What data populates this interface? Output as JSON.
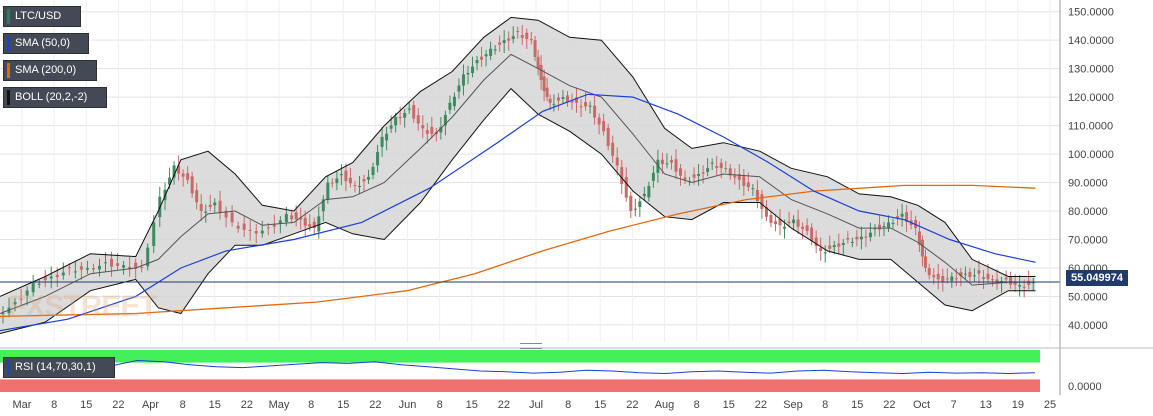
{
  "chart_data": {
    "type": "line",
    "symbol": "LTC/USD",
    "legend": [
      {
        "label": "LTC/USD",
        "color": "#2e7d5a"
      },
      {
        "label": "SMA (50,0)",
        "color": "#1c3fd6"
      },
      {
        "label": "SMA (200,0)",
        "color": "#e06a10"
      },
      {
        "label": "BOLL (20,2,-2)",
        "color": "#111111"
      }
    ],
    "y_ticks": [
      "150.0000",
      "140.0000",
      "130.0000",
      "120.0000",
      "110.0000",
      "100.0000",
      "90.0000",
      "80.0000",
      "70.0000",
      "60.0000",
      "50.0000",
      "40.0000"
    ],
    "ylim": [
      34,
      152
    ],
    "x_ticks": [
      "Mar",
      "8",
      "15",
      "22",
      "Apr",
      "8",
      "15",
      "22",
      "May",
      "8",
      "15",
      "22",
      "Jun",
      "8",
      "15",
      "22",
      "Jul",
      "8",
      "15",
      "22",
      "Aug",
      "8",
      "15",
      "22",
      "Sep",
      "8",
      "15",
      "22",
      "Oct",
      "7",
      "13",
      "19",
      "25"
    ],
    "last_price_label": "55.049974",
    "last_price": 55.05,
    "price_series": [
      {
        "x": 0,
        "y": 44
      },
      {
        "x": 8,
        "y": 48
      },
      {
        "x": 16,
        "y": 55
      },
      {
        "x": 24,
        "y": 57
      },
      {
        "x": 32,
        "y": 60
      },
      {
        "x": 40,
        "y": 60
      },
      {
        "x": 48,
        "y": 62
      },
      {
        "x": 56,
        "y": 61
      },
      {
        "x": 64,
        "y": 60
      },
      {
        "x": 72,
        "y": 85
      },
      {
        "x": 78,
        "y": 96
      },
      {
        "x": 84,
        "y": 91
      },
      {
        "x": 90,
        "y": 80
      },
      {
        "x": 96,
        "y": 83
      },
      {
        "x": 104,
        "y": 76
      },
      {
        "x": 112,
        "y": 73
      },
      {
        "x": 120,
        "y": 74
      },
      {
        "x": 128,
        "y": 79
      },
      {
        "x": 134,
        "y": 77
      },
      {
        "x": 140,
        "y": 74
      },
      {
        "x": 146,
        "y": 90
      },
      {
        "x": 152,
        "y": 93
      },
      {
        "x": 158,
        "y": 89
      },
      {
        "x": 164,
        "y": 92
      },
      {
        "x": 170,
        "y": 106
      },
      {
        "x": 176,
        "y": 113
      },
      {
        "x": 182,
        "y": 116
      },
      {
        "x": 188,
        "y": 109
      },
      {
        "x": 194,
        "y": 107
      },
      {
        "x": 200,
        "y": 118
      },
      {
        "x": 206,
        "y": 128
      },
      {
        "x": 212,
        "y": 133
      },
      {
        "x": 218,
        "y": 137
      },
      {
        "x": 224,
        "y": 140
      },
      {
        "x": 230,
        "y": 143
      },
      {
        "x": 236,
        "y": 140
      },
      {
        "x": 240,
        "y": 126
      },
      {
        "x": 244,
        "y": 118
      },
      {
        "x": 250,
        "y": 120
      },
      {
        "x": 256,
        "y": 118
      },
      {
        "x": 262,
        "y": 117
      },
      {
        "x": 268,
        "y": 108
      },
      {
        "x": 274,
        "y": 96
      },
      {
        "x": 280,
        "y": 80
      },
      {
        "x": 286,
        "y": 86
      },
      {
        "x": 292,
        "y": 98
      },
      {
        "x": 298,
        "y": 97
      },
      {
        "x": 304,
        "y": 91
      },
      {
        "x": 310,
        "y": 93
      },
      {
        "x": 316,
        "y": 97
      },
      {
        "x": 322,
        "y": 95
      },
      {
        "x": 328,
        "y": 91
      },
      {
        "x": 334,
        "y": 88
      },
      {
        "x": 340,
        "y": 78
      },
      {
        "x": 346,
        "y": 75
      },
      {
        "x": 352,
        "y": 77
      },
      {
        "x": 358,
        "y": 73
      },
      {
        "x": 364,
        "y": 66
      },
      {
        "x": 370,
        "y": 68
      },
      {
        "x": 376,
        "y": 70
      },
      {
        "x": 382,
        "y": 71
      },
      {
        "x": 388,
        "y": 74
      },
      {
        "x": 394,
        "y": 76
      },
      {
        "x": 400,
        "y": 79
      },
      {
        "x": 406,
        "y": 74
      },
      {
        "x": 410,
        "y": 60
      },
      {
        "x": 416,
        "y": 56
      },
      {
        "x": 422,
        "y": 57
      },
      {
        "x": 428,
        "y": 58
      },
      {
        "x": 434,
        "y": 58
      },
      {
        "x": 440,
        "y": 56
      },
      {
        "x": 446,
        "y": 56
      },
      {
        "x": 452,
        "y": 54
      },
      {
        "x": 458,
        "y": 55
      }
    ],
    "sma50": [
      {
        "x": 0,
        "y": 38
      },
      {
        "x": 30,
        "y": 42
      },
      {
        "x": 60,
        "y": 50
      },
      {
        "x": 80,
        "y": 60
      },
      {
        "x": 100,
        "y": 66
      },
      {
        "x": 130,
        "y": 70
      },
      {
        "x": 160,
        "y": 76
      },
      {
        "x": 190,
        "y": 88
      },
      {
        "x": 220,
        "y": 104
      },
      {
        "x": 240,
        "y": 115
      },
      {
        "x": 260,
        "y": 121
      },
      {
        "x": 280,
        "y": 120
      },
      {
        "x": 300,
        "y": 114
      },
      {
        "x": 320,
        "y": 106
      },
      {
        "x": 340,
        "y": 97
      },
      {
        "x": 360,
        "y": 87
      },
      {
        "x": 380,
        "y": 80
      },
      {
        "x": 400,
        "y": 77
      },
      {
        "x": 420,
        "y": 70
      },
      {
        "x": 440,
        "y": 65
      },
      {
        "x": 458,
        "y": 62
      }
    ],
    "sma200": [
      {
        "x": 0,
        "y": 43
      },
      {
        "x": 60,
        "y": 44
      },
      {
        "x": 100,
        "y": 46
      },
      {
        "x": 140,
        "y": 48
      },
      {
        "x": 180,
        "y": 52
      },
      {
        "x": 210,
        "y": 58
      },
      {
        "x": 240,
        "y": 66
      },
      {
        "x": 270,
        "y": 73
      },
      {
        "x": 300,
        "y": 79
      },
      {
        "x": 330,
        "y": 84
      },
      {
        "x": 360,
        "y": 87
      },
      {
        "x": 400,
        "y": 89
      },
      {
        "x": 430,
        "y": 89
      },
      {
        "x": 458,
        "y": 88
      }
    ],
    "boll_upper": [
      {
        "x": 0,
        "y": 50
      },
      {
        "x": 20,
        "y": 57
      },
      {
        "x": 40,
        "y": 65
      },
      {
        "x": 60,
        "y": 64
      },
      {
        "x": 70,
        "y": 80
      },
      {
        "x": 80,
        "y": 98
      },
      {
        "x": 92,
        "y": 101
      },
      {
        "x": 104,
        "y": 93
      },
      {
        "x": 116,
        "y": 82
      },
      {
        "x": 130,
        "y": 80
      },
      {
        "x": 144,
        "y": 92
      },
      {
        "x": 156,
        "y": 97
      },
      {
        "x": 170,
        "y": 110
      },
      {
        "x": 186,
        "y": 122
      },
      {
        "x": 200,
        "y": 129
      },
      {
        "x": 214,
        "y": 141
      },
      {
        "x": 226,
        "y": 148
      },
      {
        "x": 238,
        "y": 147
      },
      {
        "x": 252,
        "y": 141
      },
      {
        "x": 266,
        "y": 140
      },
      {
        "x": 280,
        "y": 127
      },
      {
        "x": 294,
        "y": 109
      },
      {
        "x": 306,
        "y": 102
      },
      {
        "x": 320,
        "y": 104
      },
      {
        "x": 336,
        "y": 101
      },
      {
        "x": 350,
        "y": 95
      },
      {
        "x": 366,
        "y": 92
      },
      {
        "x": 380,
        "y": 86
      },
      {
        "x": 394,
        "y": 85
      },
      {
        "x": 406,
        "y": 82
      },
      {
        "x": 418,
        "y": 76
      },
      {
        "x": 430,
        "y": 63
      },
      {
        "x": 446,
        "y": 57
      },
      {
        "x": 458,
        "y": 57
      }
    ],
    "boll_lower": [
      {
        "x": 0,
        "y": 37
      },
      {
        "x": 20,
        "y": 41
      },
      {
        "x": 40,
        "y": 52
      },
      {
        "x": 60,
        "y": 56
      },
      {
        "x": 70,
        "y": 46
      },
      {
        "x": 80,
        "y": 44
      },
      {
        "x": 92,
        "y": 58
      },
      {
        "x": 104,
        "y": 68
      },
      {
        "x": 116,
        "y": 68
      },
      {
        "x": 130,
        "y": 72
      },
      {
        "x": 144,
        "y": 76
      },
      {
        "x": 156,
        "y": 72
      },
      {
        "x": 170,
        "y": 70
      },
      {
        "x": 186,
        "y": 83
      },
      {
        "x": 200,
        "y": 98
      },
      {
        "x": 214,
        "y": 112
      },
      {
        "x": 226,
        "y": 123
      },
      {
        "x": 238,
        "y": 114
      },
      {
        "x": 252,
        "y": 108
      },
      {
        "x": 266,
        "y": 100
      },
      {
        "x": 280,
        "y": 87
      },
      {
        "x": 294,
        "y": 78
      },
      {
        "x": 306,
        "y": 77
      },
      {
        "x": 320,
        "y": 83
      },
      {
        "x": 336,
        "y": 83
      },
      {
        "x": 350,
        "y": 74
      },
      {
        "x": 366,
        "y": 66
      },
      {
        "x": 380,
        "y": 63
      },
      {
        "x": 394,
        "y": 63
      },
      {
        "x": 406,
        "y": 55
      },
      {
        "x": 418,
        "y": 47
      },
      {
        "x": 430,
        "y": 45
      },
      {
        "x": 446,
        "y": 52
      },
      {
        "x": 458,
        "y": 52
      }
    ],
    "boll_mid": [
      {
        "x": 0,
        "y": 44
      },
      {
        "x": 20,
        "y": 50
      },
      {
        "x": 40,
        "y": 58
      },
      {
        "x": 60,
        "y": 60
      },
      {
        "x": 70,
        "y": 63
      },
      {
        "x": 80,
        "y": 71
      },
      {
        "x": 92,
        "y": 79
      },
      {
        "x": 104,
        "y": 80
      },
      {
        "x": 116,
        "y": 75
      },
      {
        "x": 130,
        "y": 76
      },
      {
        "x": 144,
        "y": 84
      },
      {
        "x": 156,
        "y": 85
      },
      {
        "x": 170,
        "y": 90
      },
      {
        "x": 186,
        "y": 102
      },
      {
        "x": 200,
        "y": 113
      },
      {
        "x": 214,
        "y": 126
      },
      {
        "x": 226,
        "y": 135
      },
      {
        "x": 238,
        "y": 130
      },
      {
        "x": 252,
        "y": 124
      },
      {
        "x": 266,
        "y": 120
      },
      {
        "x": 280,
        "y": 107
      },
      {
        "x": 294,
        "y": 93
      },
      {
        "x": 306,
        "y": 90
      },
      {
        "x": 320,
        "y": 93
      },
      {
        "x": 336,
        "y": 92
      },
      {
        "x": 350,
        "y": 84
      },
      {
        "x": 366,
        "y": 79
      },
      {
        "x": 380,
        "y": 74
      },
      {
        "x": 394,
        "y": 74
      },
      {
        "x": 406,
        "y": 69
      },
      {
        "x": 418,
        "y": 62
      },
      {
        "x": 430,
        "y": 54
      },
      {
        "x": 446,
        "y": 55
      },
      {
        "x": 458,
        "y": 55
      }
    ],
    "rsi": {
      "label": "RSI (14,70,30,1)",
      "overbought": 70,
      "oversold": 30,
      "tick_label": "0.0000",
      "values": [
        55,
        58,
        60,
        57,
        62,
        75,
        72,
        65,
        60,
        58,
        62,
        66,
        70,
        68,
        72,
        65,
        60,
        55,
        50,
        48,
        45,
        47,
        52,
        50,
        46,
        44,
        48,
        50,
        47,
        45,
        50,
        52,
        48,
        46,
        44,
        47,
        45,
        46,
        44,
        46
      ]
    }
  }
}
